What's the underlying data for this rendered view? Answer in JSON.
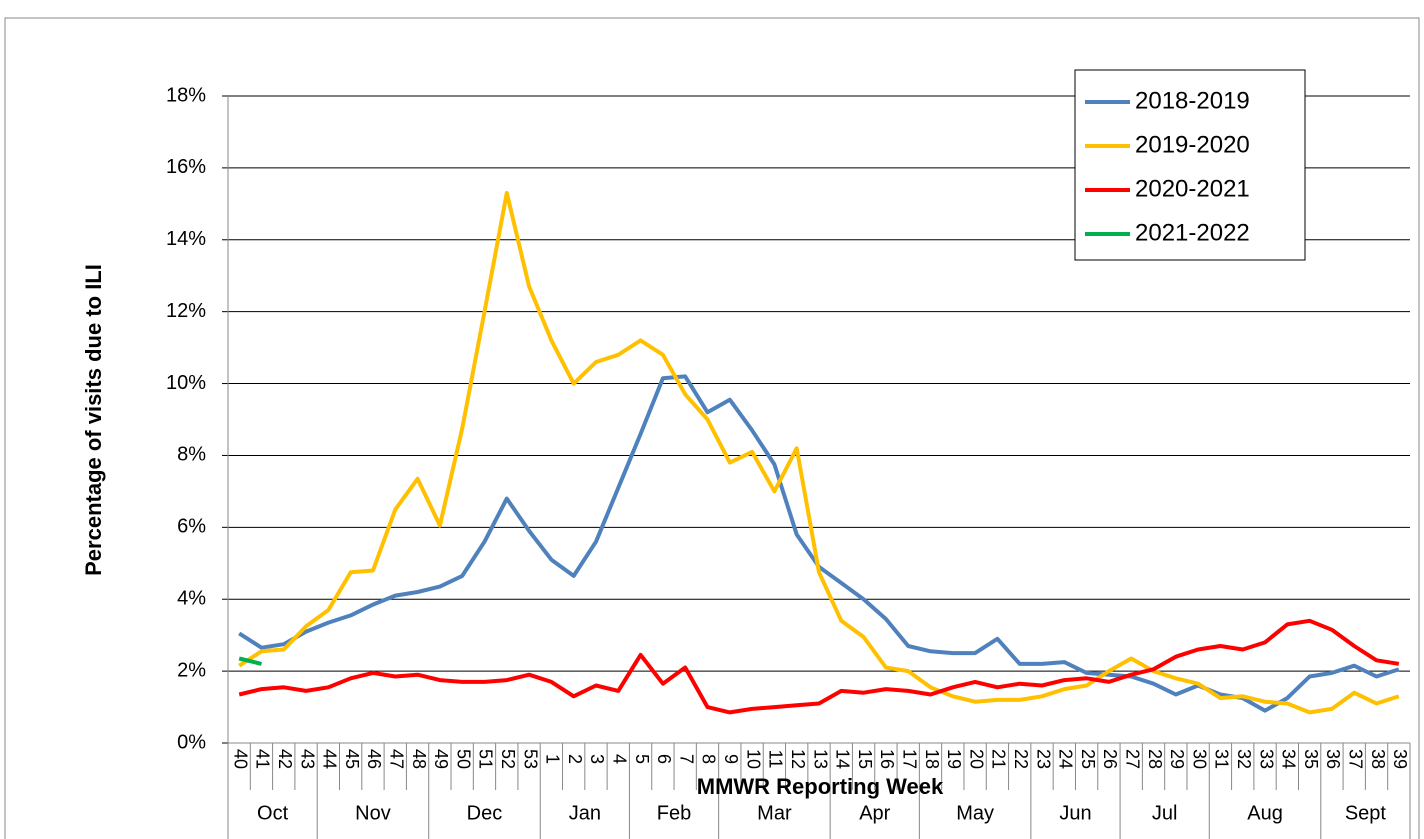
{
  "chart_data": {
    "type": "line",
    "y_label": "Percentage of visits due to ILI",
    "x_label": "MMWR Reporting Week",
    "categories": [
      "40",
      "41",
      "42",
      "43",
      "44",
      "45",
      "46",
      "47",
      "48",
      "49",
      "50",
      "51",
      "52",
      "53",
      "1",
      "2",
      "3",
      "4",
      "5",
      "6",
      "7",
      "8",
      "9",
      "10",
      "11",
      "12",
      "13",
      "14",
      "15",
      "16",
      "17",
      "18",
      "19",
      "20",
      "21",
      "22",
      "23",
      "24",
      "25",
      "26",
      "27",
      "28",
      "29",
      "30",
      "31",
      "32",
      "33",
      "34",
      "35",
      "36",
      "37",
      "38",
      "39"
    ],
    "x_groups": [
      "Oct",
      "Oct",
      "Oct",
      "Oct",
      "Nov",
      "Nov",
      "Nov",
      "Nov",
      "Nov",
      "Dec",
      "Dec",
      "Dec",
      "Dec",
      "Dec",
      "Jan",
      "Jan",
      "Jan",
      "Jan",
      "Feb",
      "Feb",
      "Feb",
      "Feb",
      "Mar",
      "Mar",
      "Mar",
      "Mar",
      "Mar",
      "Apr",
      "Apr",
      "Apr",
      "Apr",
      "May",
      "May",
      "May",
      "May",
      "May",
      "Jun",
      "Jun",
      "Jun",
      "Jun",
      "Jul",
      "Jul",
      "Jul",
      "Jul",
      "Aug",
      "Aug",
      "Aug",
      "Aug",
      "Aug",
      "Sept",
      "Sept",
      "Sept",
      "Sept"
    ],
    "ylim": [
      0,
      18
    ],
    "yticks": [
      {
        "value": 0,
        "label": "0%"
      },
      {
        "value": 2,
        "label": "2%"
      },
      {
        "value": 4,
        "label": "4%"
      },
      {
        "value": 6,
        "label": "6%"
      },
      {
        "value": 8,
        "label": "8%"
      },
      {
        "value": 10,
        "label": "10%"
      },
      {
        "value": 12,
        "label": "12%"
      },
      {
        "value": 14,
        "label": "14%"
      },
      {
        "value": 16,
        "label": "16%"
      },
      {
        "value": 18,
        "label": "18%"
      }
    ],
    "grid": true,
    "legend": "top-right",
    "series": [
      {
        "name": "2018-2019",
        "color": "#4f81bd",
        "values": [
          3.05,
          2.65,
          2.75,
          3.1,
          3.35,
          3.55,
          3.85,
          4.1,
          4.2,
          4.35,
          4.65,
          5.6,
          6.8,
          5.9,
          5.1,
          4.65,
          5.6,
          7.1,
          8.6,
          10.15,
          10.2,
          9.2,
          9.55,
          8.7,
          7.75,
          5.8,
          4.9,
          4.45,
          4.0,
          3.45,
          2.7,
          2.55,
          2.5,
          2.5,
          2.9,
          2.2,
          2.2,
          2.25,
          1.95,
          1.9,
          1.85,
          1.65,
          1.35,
          1.6,
          1.35,
          1.25,
          0.9,
          1.25,
          1.85,
          1.95,
          2.15,
          1.85,
          2.05
        ]
      },
      {
        "name": "2019-2020",
        "color": "#ffc000",
        "values": [
          2.15,
          2.55,
          2.6,
          3.25,
          3.7,
          4.75,
          4.8,
          6.5,
          7.35,
          6.05,
          8.75,
          12.0,
          15.3,
          12.7,
          11.2,
          10.0,
          10.6,
          10.8,
          11.2,
          10.8,
          9.7,
          9.0,
          7.8,
          8.1,
          7.0,
          8.2,
          4.75,
          3.4,
          2.95,
          2.1,
          2.0,
          1.55,
          1.3,
          1.15,
          1.2,
          1.2,
          1.3,
          1.5,
          1.6,
          2.0,
          2.35,
          2.0,
          1.8,
          1.65,
          1.25,
          1.3,
          1.15,
          1.1,
          0.85,
          0.95,
          1.4,
          1.1,
          1.3
        ]
      },
      {
        "name": "2020-2021",
        "color": "#ff0000",
        "values": [
          1.35,
          1.5,
          1.55,
          1.45,
          1.55,
          1.8,
          1.95,
          1.85,
          1.9,
          1.75,
          1.7,
          1.7,
          1.75,
          1.9,
          1.7,
          1.3,
          1.6,
          1.45,
          2.45,
          1.65,
          2.1,
          1.0,
          0.85,
          0.95,
          1.0,
          1.05,
          1.1,
          1.45,
          1.4,
          1.5,
          1.45,
          1.35,
          1.55,
          1.7,
          1.55,
          1.65,
          1.6,
          1.75,
          1.8,
          1.7,
          1.9,
          2.05,
          2.4,
          2.6,
          2.7,
          2.6,
          2.8,
          3.3,
          3.4,
          3.15,
          2.7,
          2.3,
          2.2
        ]
      },
      {
        "name": "2021-2022",
        "color": "#00b050",
        "values": [
          2.35,
          2.2,
          null,
          null,
          null,
          null,
          null,
          null,
          null,
          null,
          null,
          null,
          null,
          null,
          null,
          null,
          null,
          null,
          null,
          null,
          null,
          null,
          null,
          null,
          null,
          null,
          null,
          null,
          null,
          null,
          null,
          null,
          null,
          null,
          null,
          null,
          null,
          null,
          null,
          null,
          null,
          null,
          null,
          null,
          null,
          null,
          null,
          null,
          null,
          null,
          null,
          null,
          null
        ]
      }
    ]
  }
}
